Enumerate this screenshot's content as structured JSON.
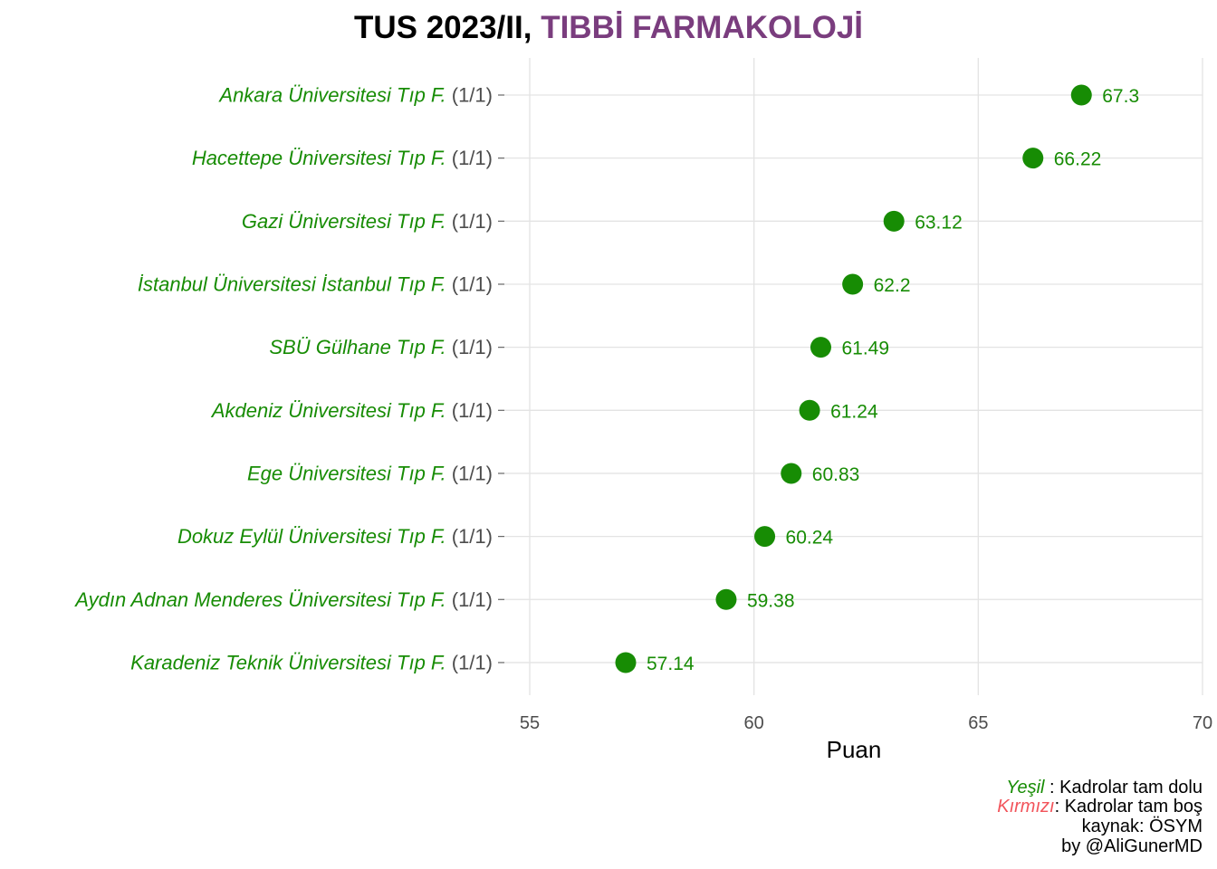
{
  "colors": {
    "green": "#178c04",
    "red": "#f2545b",
    "purple": "#7a3d7e",
    "grid": "#e3e3e3",
    "tick_text": "#4d4d4d"
  },
  "title": {
    "prefix": "TUS 2023/II, ",
    "highlight": "TIBBİ FARMAKOLOJİ"
  },
  "chart_data": {
    "type": "scatter",
    "title": "TUS 2023/II, TIBBİ FARMAKOLOJİ",
    "xlabel": "Puan",
    "ylabel": "",
    "xlim": [
      55,
      70
    ],
    "xticks": [
      55,
      60,
      65,
      70
    ],
    "grid": true,
    "points": [
      {
        "label": "Ankara Üniversitesi Tıp F.",
        "count": "(1/1)",
        "value": 67.3,
        "value_label": "67.3",
        "status": "green"
      },
      {
        "label": "Hacettepe Üniversitesi Tıp F.",
        "count": "(1/1)",
        "value": 66.22,
        "value_label": "66.22",
        "status": "green"
      },
      {
        "label": "Gazi Üniversitesi Tıp F.",
        "count": "(1/1)",
        "value": 63.12,
        "value_label": "63.12",
        "status": "green"
      },
      {
        "label": "İstanbul Üniversitesi İstanbul Tıp F.",
        "count": "(1/1)",
        "value": 62.2,
        "value_label": "62.2",
        "status": "green"
      },
      {
        "label": "SBÜ Gülhane Tıp F.",
        "count": "(1/1)",
        "value": 61.49,
        "value_label": "61.49",
        "status": "green"
      },
      {
        "label": "Akdeniz Üniversitesi Tıp F.",
        "count": "(1/1)",
        "value": 61.24,
        "value_label": "61.24",
        "status": "green"
      },
      {
        "label": "Ege Üniversitesi Tıp F.",
        "count": "(1/1)",
        "value": 60.83,
        "value_label": "60.83",
        "status": "green"
      },
      {
        "label": "Dokuz Eylül Üniversitesi Tıp F.",
        "count": "(1/1)",
        "value": 60.24,
        "value_label": "60.24",
        "status": "green"
      },
      {
        "label": "Aydın Adnan Menderes Üniversitesi Tıp F.",
        "count": "(1/1)",
        "value": 59.38,
        "value_label": "59.38",
        "status": "green"
      },
      {
        "label": "Karadeniz Teknik Üniversitesi Tıp F.",
        "count": "(1/1)",
        "value": 57.14,
        "value_label": "57.14",
        "status": "green"
      }
    ]
  },
  "caption": {
    "green_word": "Yeşil",
    "green_text": " : Kadrolar tam dolu",
    "red_word": "Kırmızı",
    "red_text": ": Kadrolar tam boş",
    "source": "kaynak: ÖSYM",
    "author": "by @AliGunerMD"
  }
}
